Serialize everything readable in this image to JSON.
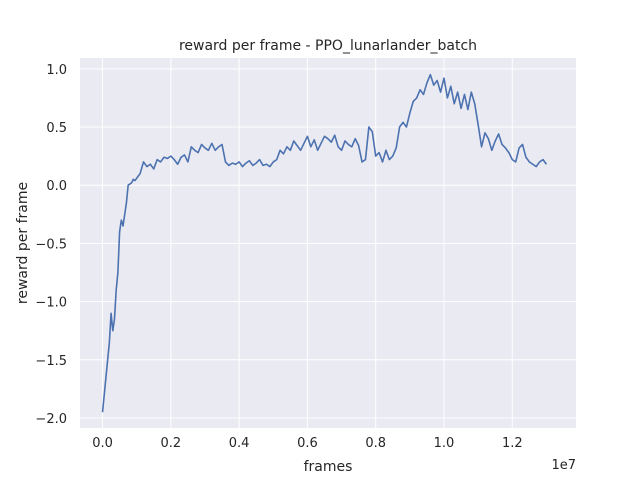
{
  "chart_data": {
    "type": "line",
    "title": "reward per frame - PPO_lunarlander_batch",
    "xlabel": "frames",
    "ylabel": "reward per frame",
    "x_offset_label": "1e7",
    "xlim": [
      -0.066,
      1.3866
    ],
    "ylim": [
      -2.086,
      1.093
    ],
    "xticks": [
      0.0,
      0.2,
      0.4,
      0.6,
      0.8,
      1.0,
      1.2
    ],
    "xtick_labels": [
      "0.0",
      "0.2",
      "0.4",
      "0.6",
      "0.8",
      "1.0",
      "1.2"
    ],
    "yticks": [
      -2.0,
      -1.5,
      -1.0,
      -0.5,
      0.0,
      0.5,
      1.0
    ],
    "ytick_labels": [
      "−2.0",
      "−1.5",
      "−1.0",
      "−0.5",
      "0.0",
      "0.5",
      "1.0"
    ],
    "grid": true,
    "background": "#eaeaf2",
    "grid_color": "#ffffff",
    "line_color": "#4c72b0",
    "series": [
      {
        "x": [
          0.0,
          0.01,
          0.02,
          0.025,
          0.03,
          0.035,
          0.04,
          0.045,
          0.05,
          0.055,
          0.06,
          0.065,
          0.07,
          0.075,
          0.08,
          0.085,
          0.09,
          0.095,
          0.1,
          0.105,
          0.11,
          0.115,
          0.12,
          0.13,
          0.14,
          0.15,
          0.16,
          0.17,
          0.18,
          0.19,
          0.2,
          0.21,
          0.22,
          0.23,
          0.24,
          0.25,
          0.26,
          0.27,
          0.28,
          0.29,
          0.3,
          0.31,
          0.32,
          0.33,
          0.34,
          0.35,
          0.36,
          0.37,
          0.38,
          0.39,
          0.4,
          0.41,
          0.42,
          0.43,
          0.44,
          0.45,
          0.46,
          0.47,
          0.48,
          0.49,
          0.5,
          0.51,
          0.52,
          0.53,
          0.54,
          0.55,
          0.56,
          0.57,
          0.58,
          0.59,
          0.6,
          0.61,
          0.62,
          0.63,
          0.64,
          0.65,
          0.66,
          0.67,
          0.68,
          0.69,
          0.7,
          0.71,
          0.72,
          0.73,
          0.74,
          0.75,
          0.76,
          0.77,
          0.78,
          0.79,
          0.8,
          0.81,
          0.82,
          0.83,
          0.84,
          0.85,
          0.86,
          0.87,
          0.88,
          0.89,
          0.9,
          0.91,
          0.92,
          0.93,
          0.94,
          0.95,
          0.96,
          0.97,
          0.98,
          0.99,
          1.0,
          1.01,
          1.02,
          1.03,
          1.04,
          1.05,
          1.06,
          1.07,
          1.08,
          1.09,
          1.1,
          1.11,
          1.12,
          1.13,
          1.14,
          1.15,
          1.16,
          1.17,
          1.18,
          1.19,
          1.2,
          1.21,
          1.22,
          1.23,
          1.24,
          1.25,
          1.26,
          1.27,
          1.28,
          1.29,
          1.3
        ],
        "y": [
          -1.95,
          -1.65,
          -1.35,
          -1.1,
          -1.25,
          -1.15,
          -0.9,
          -0.75,
          -0.4,
          -0.3,
          -0.35,
          -0.25,
          -0.15,
          0.0,
          0.01,
          0.02,
          0.05,
          0.04,
          0.06,
          0.08,
          0.1,
          0.15,
          0.2,
          0.16,
          0.18,
          0.14,
          0.22,
          0.2,
          0.24,
          0.23,
          0.25,
          0.22,
          0.18,
          0.24,
          0.26,
          0.2,
          0.33,
          0.3,
          0.28,
          0.35,
          0.32,
          0.3,
          0.36,
          0.3,
          0.33,
          0.35,
          0.2,
          0.17,
          0.19,
          0.18,
          0.2,
          0.16,
          0.19,
          0.21,
          0.17,
          0.19,
          0.22,
          0.17,
          0.18,
          0.16,
          0.2,
          0.22,
          0.3,
          0.27,
          0.33,
          0.3,
          0.38,
          0.34,
          0.3,
          0.36,
          0.42,
          0.33,
          0.39,
          0.3,
          0.36,
          0.42,
          0.4,
          0.37,
          0.43,
          0.33,
          0.3,
          0.38,
          0.35,
          0.33,
          0.4,
          0.34,
          0.2,
          0.22,
          0.5,
          0.46,
          0.25,
          0.28,
          0.2,
          0.3,
          0.22,
          0.25,
          0.32,
          0.5,
          0.54,
          0.5,
          0.62,
          0.72,
          0.75,
          0.82,
          0.78,
          0.88,
          0.95,
          0.86,
          0.9,
          0.8,
          0.92,
          0.75,
          0.85,
          0.7,
          0.8,
          0.66,
          0.78,
          0.65,
          0.8,
          0.7,
          0.52,
          0.33,
          0.45,
          0.4,
          0.3,
          0.38,
          0.44,
          0.35,
          0.32,
          0.28,
          0.22,
          0.2,
          0.32,
          0.35,
          0.24,
          0.2,
          0.18,
          0.16,
          0.2,
          0.22,
          0.18
        ]
      }
    ]
  }
}
